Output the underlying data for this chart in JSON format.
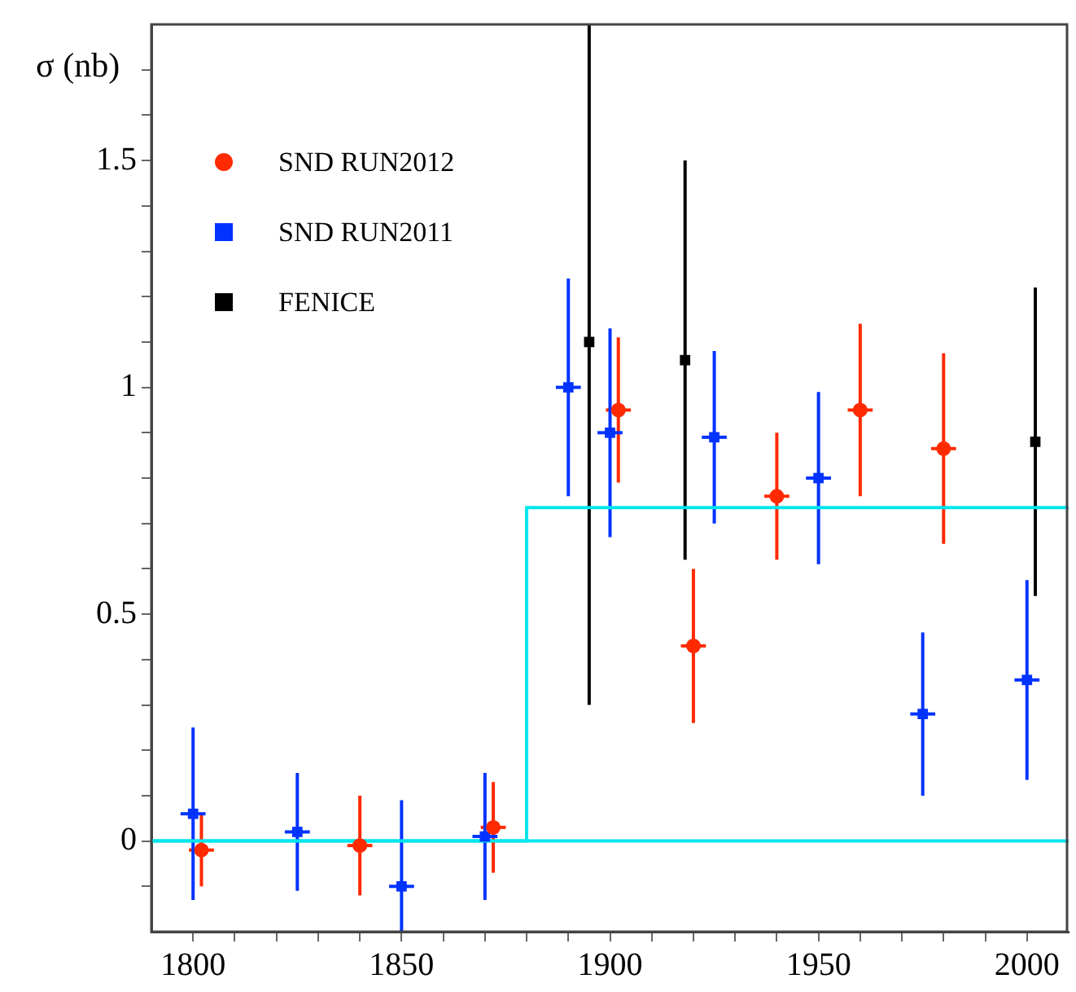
{
  "chart_data": {
    "type": "scatter",
    "ylabel": "σ (nb)",
    "xlim": [
      1790,
      2010
    ],
    "xticks": [
      1800,
      {
        "value": 1810,
        "label": null
      },
      {
        "value": 1820,
        "label": null
      },
      {
        "value": 1830,
        "label": null
      },
      {
        "value": 1840,
        "label": null
      },
      1850,
      {
        "value": 1860,
        "label": null
      },
      {
        "value": 1870,
        "label": null
      },
      {
        "value": 1880,
        "label": null
      },
      {
        "value": 1890,
        "label": null
      },
      1900,
      {
        "value": 1910,
        "label": null
      },
      {
        "value": 1920,
        "label": null
      },
      {
        "value": 1930,
        "label": null
      },
      {
        "value": 1940,
        "label": null
      },
      1950,
      {
        "value": 1960,
        "label": null
      },
      {
        "value": 1970,
        "label": null
      },
      {
        "value": 1980,
        "label": null
      },
      {
        "value": 1990,
        "label": null
      },
      2000
    ],
    "ylim": [
      -0.2,
      1.8
    ],
    "yticks": [
      {
        "value": -0.1,
        "label": null
      },
      0,
      {
        "value": 0.1,
        "label": null
      },
      {
        "value": 0.2,
        "label": null
      },
      {
        "value": 0.3,
        "label": null
      },
      {
        "value": 0.4,
        "label": null
      },
      0.5,
      {
        "value": 0.6,
        "label": null
      },
      {
        "value": 0.7,
        "label": null
      },
      {
        "value": 0.8,
        "label": null
      },
      {
        "value": 0.9,
        "label": null
      },
      1,
      {
        "value": 1.1,
        "label": null
      },
      {
        "value": 1.2,
        "label": null
      },
      {
        "value": 1.3,
        "label": null
      },
      {
        "value": 1.4,
        "label": null
      },
      1.5,
      {
        "value": 1.6,
        "label": null
      },
      {
        "value": 1.7,
        "label": null
      }
    ],
    "grid": false,
    "legend": "top left",
    "ref_lines": [
      {
        "axis": "y",
        "value": 0,
        "color": "#00e5ee"
      }
    ],
    "series": [
      {
        "name": "SND RUN2012",
        "color": "#ff2a00",
        "marker": "circle",
        "x": [
          1802,
          1840,
          1872,
          1902,
          1920,
          1940,
          1960,
          1980
        ],
        "values": [
          -0.02,
          -0.01,
          0.03,
          0.95,
          0.43,
          0.76,
          0.95,
          0.865
        ],
        "errors": [
          0.08,
          0.11,
          0.1,
          0.16,
          0.17,
          0.14,
          0.19,
          0.21
        ],
        "xerrors": [
          3,
          3,
          3,
          3,
          3,
          3,
          3,
          3
        ]
      },
      {
        "name": "SND RUN2011",
        "color": "#0033ff",
        "marker": "square",
        "x": [
          1800,
          1825,
          1850,
          1870,
          1890,
          1900,
          1925,
          1950,
          1975,
          2000
        ],
        "values": [
          0.06,
          0.02,
          -0.1,
          0.01,
          1.0,
          0.9,
          0.89,
          0.8,
          0.28,
          0.355
        ],
        "errors": [
          0.19,
          0.13,
          0.19,
          0.14,
          0.24,
          0.23,
          0.19,
          0.19,
          0.18,
          0.22
        ],
        "xerrors": [
          3,
          3,
          3,
          3,
          3,
          3,
          3,
          3,
          3,
          3
        ]
      },
      {
        "name": "FENICE",
        "color": "#000000",
        "marker": "square",
        "x": [
          1895,
          1918,
          2002
        ],
        "values": [
          1.1,
          1.06,
          0.88
        ],
        "errors": [
          [
            0.3,
            1.8
          ],
          0.44,
          0.34
        ]
      },
      {
        "type": "line",
        "color": "#00e5ee",
        "marker": "none",
        "x": [
          1790,
          1880,
          1880,
          2010
        ],
        "values": [
          0,
          0,
          0.735,
          0.735
        ]
      }
    ]
  }
}
